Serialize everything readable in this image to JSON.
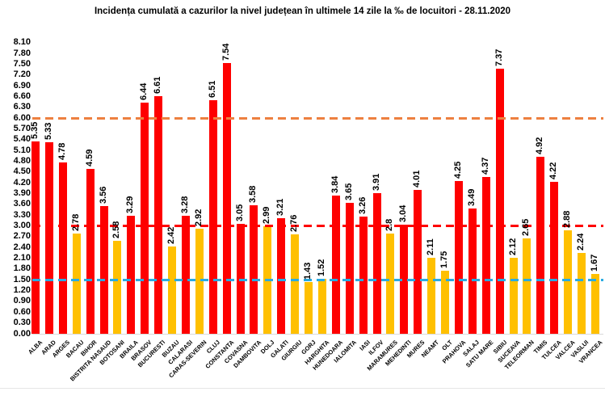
{
  "title": "Incidența cumulată a cazurilor la nivel județean în ultimele 14 zile la ‰ de locuitori - 28.11.2020",
  "chart_data": {
    "type": "bar",
    "title": "Incidența cumulată a cazurilor la nivel județean în ultimele 14 zile la ‰ de locuitori - 28.11.2020",
    "categories": [
      "ALBA",
      "ARAD",
      "ARGES",
      "BACAU",
      "BIHOR",
      "BISTRITA NASAUD",
      "BOTOSANI",
      "BRAILA",
      "BRASOV",
      "BUCURESTI",
      "BUZAU",
      "CALARASI",
      "CARAS-SEVERIN",
      "CLUJ",
      "CONSTANTA",
      "COVASNA",
      "DAMBOVITA",
      "DOLJ",
      "GALATI",
      "GIURGIU",
      "GORJ",
      "HARGHITA",
      "HUNEDOARA",
      "IALOMITA",
      "IASI",
      "ILFOV",
      "MARAMURES",
      "MEHEDINTI",
      "MURES",
      "NEAMT",
      "OLT",
      "PRAHOVA",
      "SALAJ",
      "SATU MARE",
      "SIBIU",
      "SUCEAVA",
      "TELEORMAN",
      "TIMIS",
      "TULCEA",
      "VALCEA",
      "VASLUI",
      "VRANCEA"
    ],
    "values": [
      5.35,
      5.33,
      4.78,
      2.78,
      4.59,
      3.56,
      2.58,
      3.29,
      6.44,
      6.61,
      2.42,
      3.28,
      2.92,
      6.51,
      7.54,
      3.05,
      3.58,
      2.99,
      3.21,
      2.76,
      1.43,
      1.52,
      3.84,
      3.65,
      3.26,
      3.91,
      2.8,
      3.04,
      4.01,
      2.11,
      1.75,
      4.25,
      3.49,
      4.37,
      7.37,
      2.12,
      2.65,
      4.92,
      4.22,
      2.88,
      2.24,
      1.67
    ],
    "value_labels": [
      "5.35",
      "5.33",
      "4.78",
      "2.78",
      "4.59",
      "3.56",
      "2.58",
      "3.29",
      "6.44",
      "6.61",
      "2.42",
      "3.28",
      "2.92",
      "6.51",
      "7.54",
      "3.05",
      "3.58",
      "2.99",
      "3.21",
      "2.76",
      "1.43",
      "1.52",
      "3.84",
      "3.65",
      "3.26",
      "3.91",
      "2.8",
      "3.04",
      "4.01",
      "2.11",
      "1.75",
      "4.25",
      "3.49",
      "4.37",
      "7.37",
      "2.12",
      "2.65",
      "4.92",
      "4.22",
      "2.88",
      "2.24",
      "1.67"
    ],
    "xlabel": "",
    "ylabel": "",
    "ylim": [
      0,
      8.1
    ],
    "ytick_step": 0.3,
    "grid": false,
    "legend": false,
    "background": "#FFFFFF",
    "bar_color_rule": "red when value >= 3.00, yellow when value < 3.00",
    "colors": {
      "red_bar": "#FE0000",
      "yellow_bar": "#FFC000"
    },
    "thresholds": [
      {
        "name": "orange-dashed-line",
        "value": 6.0,
        "color": "#ED8040"
      },
      {
        "name": "red-dashed-line",
        "value": 3.0,
        "color": "#FE0000"
      },
      {
        "name": "blue-dashed-line",
        "value": 1.5,
        "color": "#29ABE2"
      }
    ]
  }
}
